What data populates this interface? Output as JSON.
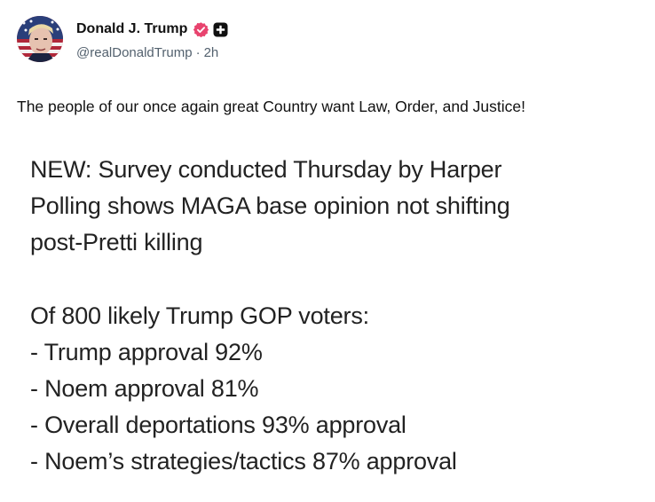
{
  "author": {
    "display_name": "Donald J. Trump",
    "handle": "@realDonaldTrump",
    "separator": "·",
    "timestamp": "2h",
    "verified_color": "#e8436e",
    "badge_icon": "plus-square-icon"
  },
  "post": {
    "text": "The people of our once again great Country want Law, Order, and Justice!"
  },
  "media": {
    "lines": [
      "NEW: Survey conducted Thursday by Harper",
      "Polling shows MAGA base opinion not shifting",
      "post-Pretti killing",
      "Of 800 likely Trump GOP voters:",
      "- Trump approval 92%",
      "- Noem approval 81%",
      "- Overall deportations 93% approval",
      "- Noem’s strategies/tactics 87% approval"
    ]
  }
}
